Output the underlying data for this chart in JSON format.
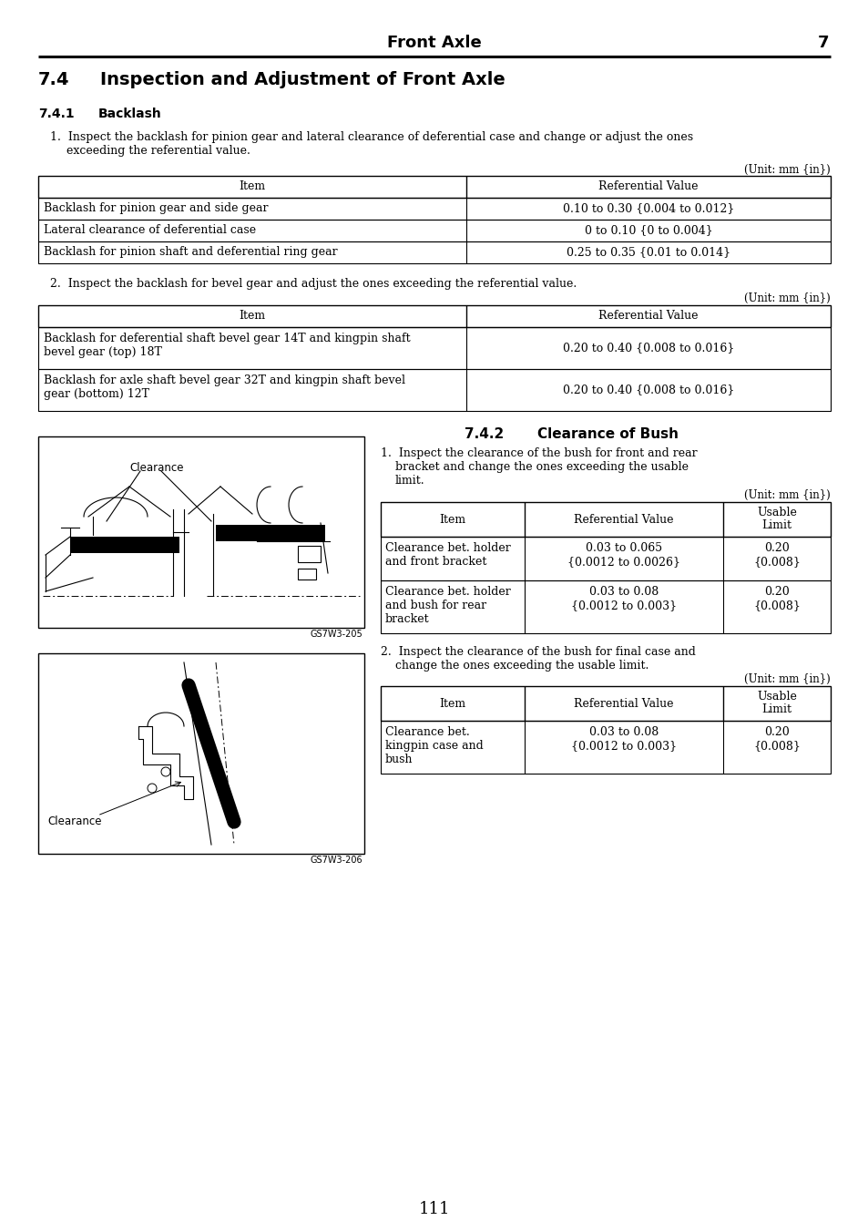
{
  "page_title": "Front Axle",
  "page_number": "7",
  "section_num": "7.4",
  "section_title": "Inspection and Adjustment of Front Axle",
  "sub1_num": "7.4.1",
  "sub1_title": "Backlash",
  "sub2_num": "7.4.2",
  "sub2_title": "Clearance of Bush",
  "unit_text": "(Unit: mm {in})",
  "table1_rows": [
    [
      "Backlash for pinion gear and side gear",
      "0.10 to 0.30 {0.004 to 0.012}"
    ],
    [
      "Lateral clearance of deferential case",
      "0 to 0.10 {0 to 0.004}"
    ],
    [
      "Backlash for pinion shaft and deferential ring gear",
      "0.25 to 0.35 {0.01 to 0.014}"
    ]
  ],
  "table2_rows": [
    [
      "Backlash for deferential shaft bevel gear 14T and kingpin shaft\nbevel gear (top) 18T",
      "0.20 to 0.40 {0.008 to 0.016}"
    ],
    [
      "Backlash for axle shaft bevel gear 32T and kingpin shaft bevel\ngear (bottom) 12T",
      "0.20 to 0.40 {0.008 to 0.016}"
    ]
  ],
  "bush_table1_rows": [
    [
      "Clearance bet. holder\nand front bracket",
      "0.03 to 0.065\n{0.0012 to 0.0026}",
      "0.20\n{0.008}"
    ],
    [
      "Clearance bet. holder\nand bush for rear\nbracket",
      "0.03 to 0.08\n{0.0012 to 0.003}",
      "0.20\n{0.008}"
    ]
  ],
  "bush_table2_rows": [
    [
      "Clearance bet.\nkingpin case and\nbush",
      "0.03 to 0.08\n{0.0012 to 0.003}",
      "0.20\n{0.008}"
    ]
  ],
  "footer_page": "111",
  "img1_caption": "GS7W3-205",
  "img2_caption": "GS7W3-206",
  "bg_color": "#ffffff"
}
